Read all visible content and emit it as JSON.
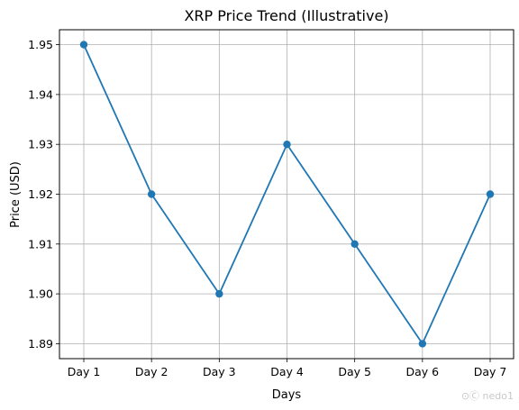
{
  "chart_data": {
    "type": "line",
    "title": "XRP Price Trend (Illustrative)",
    "xlabel": "Days",
    "ylabel": "Price (USD)",
    "categories": [
      "Day 1",
      "Day 2",
      "Day 3",
      "Day 4",
      "Day 5",
      "Day 6",
      "Day 7"
    ],
    "series": [
      {
        "values": [
          1.95,
          1.92,
          1.9,
          1.93,
          1.91,
          1.89,
          1.92
        ]
      }
    ],
    "yticks": [
      "1.89",
      "1.90",
      "1.91",
      "1.92",
      "1.93",
      "1.94",
      "1.95"
    ],
    "ylim": [
      1.887,
      1.953
    ],
    "grid": true,
    "markers": true,
    "line_color": "#1f77b4"
  },
  "watermark": "⊙Ⓒ nedo1"
}
